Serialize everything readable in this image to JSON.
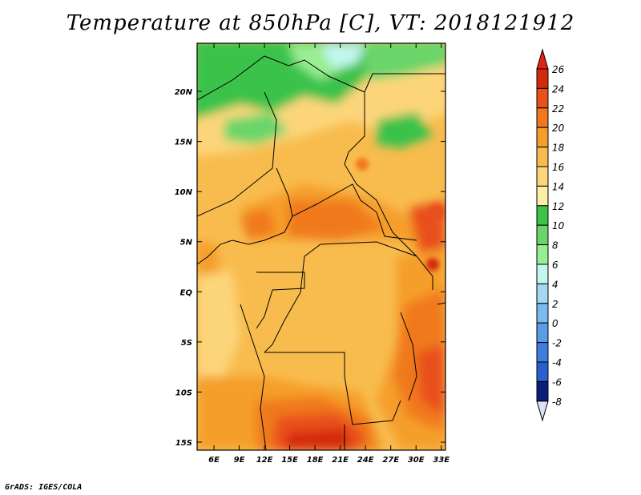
{
  "title": "Temperature at 850hPa [C], VT: 2018121912",
  "footer": "GrADS: IGES/COLA",
  "map": {
    "lon_range_deg": [
      4,
      33.5
    ],
    "lat_range_deg": [
      -15.8,
      24.8
    ],
    "lon_ticks": [
      "6E",
      "9E",
      "12E",
      "15E",
      "18E",
      "21E",
      "24E",
      "27E",
      "30E",
      "33E"
    ],
    "lat_ticks": [
      "20N",
      "15N",
      "10N",
      "5N",
      "EQ",
      "5S",
      "10S",
      "15S"
    ]
  },
  "colorbar": {
    "labels": [
      "26",
      "24",
      "22",
      "20",
      "18",
      "16",
      "14",
      "12",
      "10",
      "8",
      "6",
      "4",
      "2",
      "0",
      "-2",
      "-4",
      "-6",
      "-8"
    ],
    "colors": [
      "#d42a0c",
      "#e9501b",
      "#f0791d",
      "#f59e2b",
      "#f8bc4e",
      "#fcd57a",
      "#fbeea5",
      "#3bc24b",
      "#6ad56a",
      "#9aee92",
      "#c4f6f0",
      "#a3d8f2",
      "#7bbaef",
      "#5a9ce6",
      "#3f7ede",
      "#2a5fcf",
      "#183fb5",
      "#0b1d7a"
    ],
    "over_color": "#e02414",
    "under_color": "#dde0f4"
  }
}
